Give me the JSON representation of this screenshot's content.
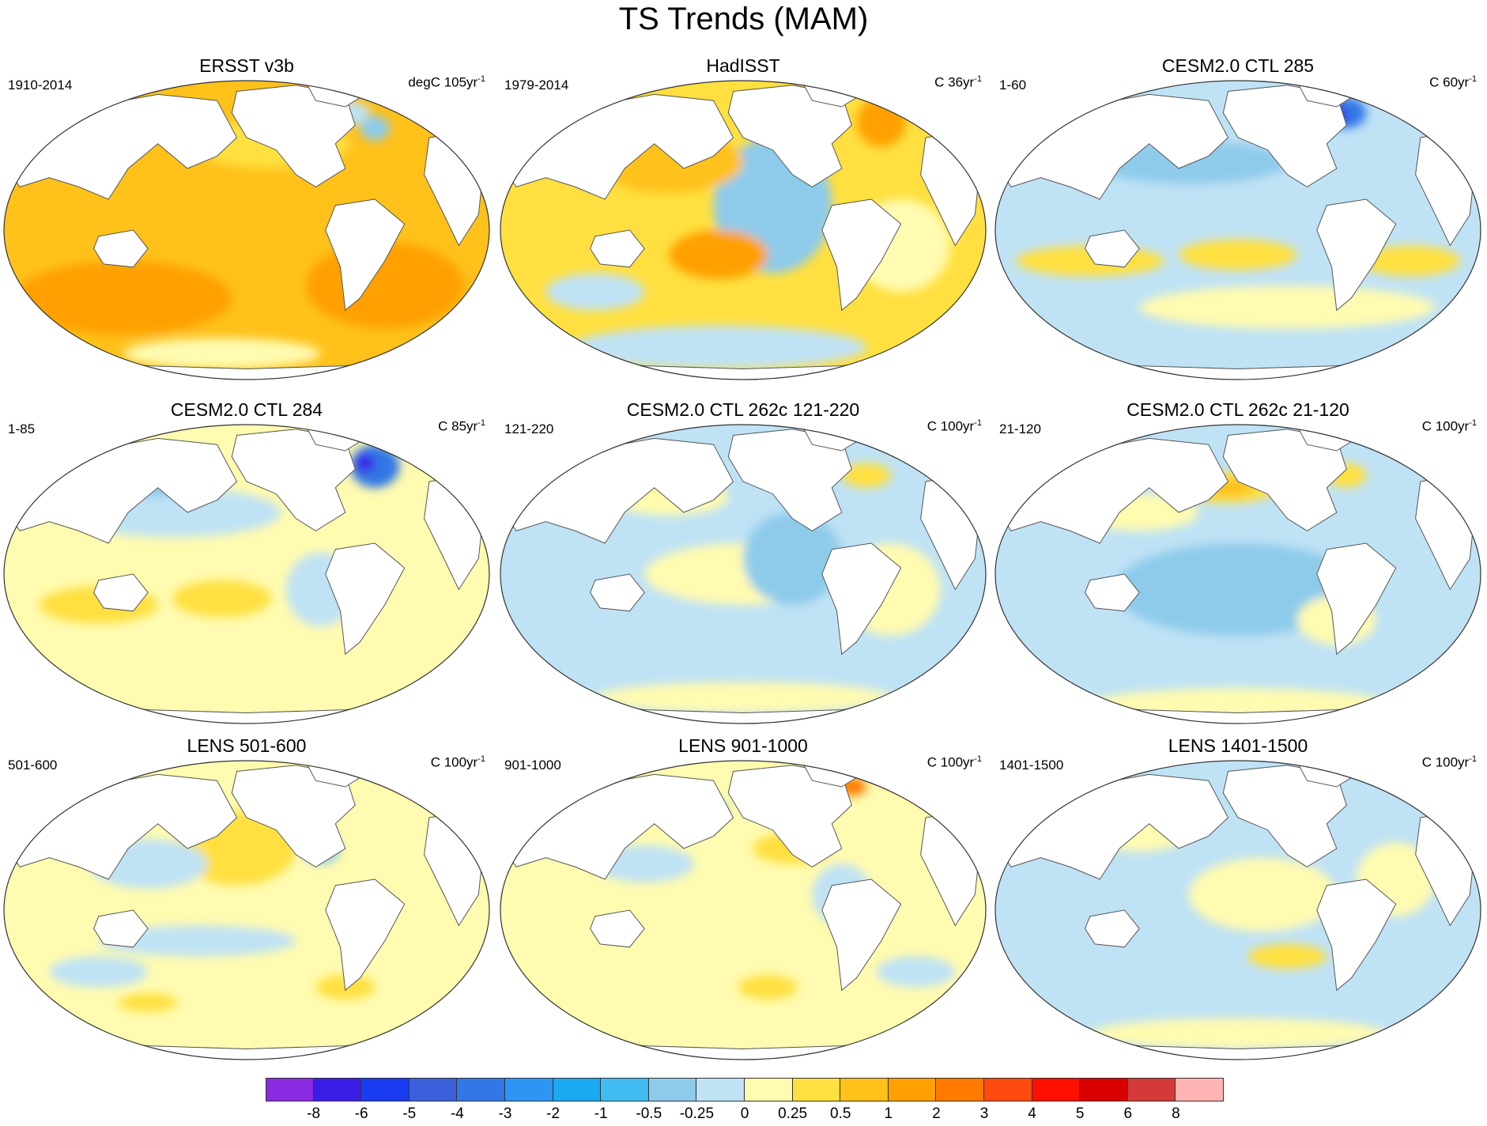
{
  "title": "TS Trends (MAM)",
  "panels": [
    {
      "title": "ERSST v3b",
      "left": "1910-2014",
      "unit": "degC 105yr",
      "exp": "-1",
      "pattern": "warm-strong"
    },
    {
      "title": "HadISST",
      "left": "1979-2014",
      "unit": "C 36yr",
      "exp": "-1",
      "pattern": "mixed-warm"
    },
    {
      "title": "CESM2.0 CTL 285",
      "left": "1-60",
      "unit": "C 60yr",
      "exp": "-1",
      "pattern": "cool-north"
    },
    {
      "title": "CESM2.0 CTL 284",
      "left": "1-85",
      "unit": "C 85yr",
      "exp": "-1",
      "pattern": "cool-north2"
    },
    {
      "title": "CESM2.0 CTL 262c 121-220",
      "left": "121-220",
      "unit": "C 100yr",
      "exp": "-1",
      "pattern": "cool-mild"
    },
    {
      "title": "CESM2.0 CTL 262c 21-120",
      "left": "21-120",
      "unit": "C 100yr",
      "exp": "-1",
      "pattern": "cool-wide"
    },
    {
      "title": "LENS 501-600",
      "left": "501-600",
      "unit": "C 100yr",
      "exp": "-1",
      "pattern": "warm-pacific"
    },
    {
      "title": "LENS 901-1000",
      "left": "901-1000",
      "unit": "C 100yr",
      "exp": "-1",
      "pattern": "yellow-mild"
    },
    {
      "title": "LENS 1401-1500",
      "left": "1401-1500",
      "unit": "C 100yr",
      "exp": "-1",
      "pattern": "cool-light"
    }
  ],
  "colorbar": {
    "colors": [
      "#8a2be2",
      "#3a1ee6",
      "#1a3cf0",
      "#3a60dc",
      "#3377e6",
      "#2e95f5",
      "#1aaaf0",
      "#40bcf2",
      "#8ecbeb",
      "#bfe2f5",
      "#fffbb0",
      "#ffe040",
      "#ffc11a",
      "#ffa000",
      "#ff7a00",
      "#ff4a10",
      "#ff1000",
      "#d80000",
      "#d43a3a",
      "#ffb4b4"
    ],
    "labels": [
      "-8",
      "-6",
      "-5",
      "-4",
      "-3",
      "-2",
      "-1",
      "-0.5",
      "-0.25",
      "0",
      "0.25",
      "0.5",
      "1",
      "2",
      "3",
      "4",
      "5",
      "6",
      "8"
    ]
  }
}
